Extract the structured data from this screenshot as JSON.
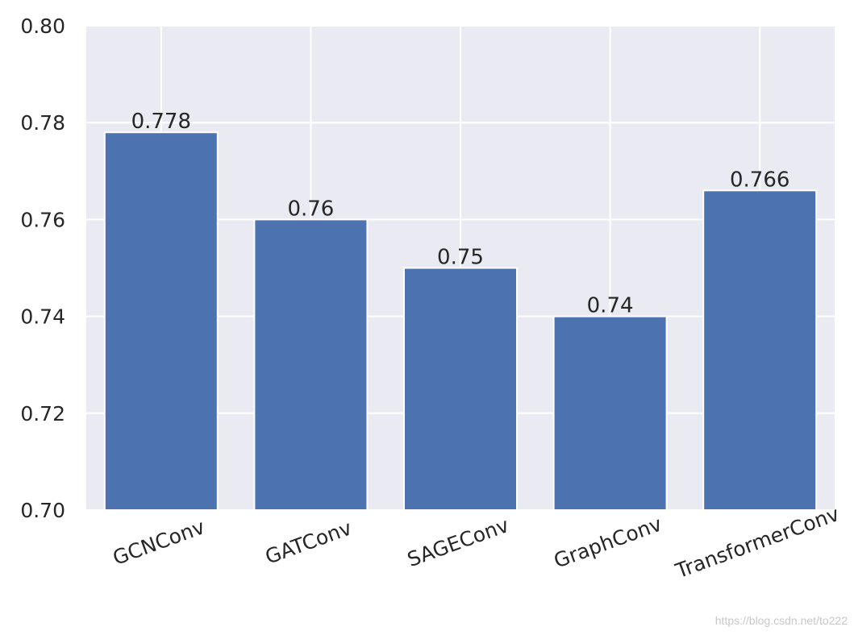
{
  "chart_data": {
    "type": "bar",
    "categories": [
      "GCNConv",
      "GATConv",
      "SAGEConv",
      "GraphConv",
      "TransformerConv"
    ],
    "values": [
      0.778,
      0.76,
      0.75,
      0.74,
      0.766
    ],
    "value_labels": [
      "0.778",
      "0.76",
      "0.75",
      "0.74",
      "0.766"
    ],
    "yticks": [
      "0.70",
      "0.72",
      "0.74",
      "0.76",
      "0.78",
      "0.80"
    ],
    "ylim": [
      0.7,
      0.8
    ],
    "grid": true,
    "bar_color": "#4c72b0",
    "background_color": "#eaeaf2",
    "grid_color": "#ffffff",
    "xtick_rotation_deg": -20
  },
  "watermark": "https://blog.csdn.net/to222"
}
